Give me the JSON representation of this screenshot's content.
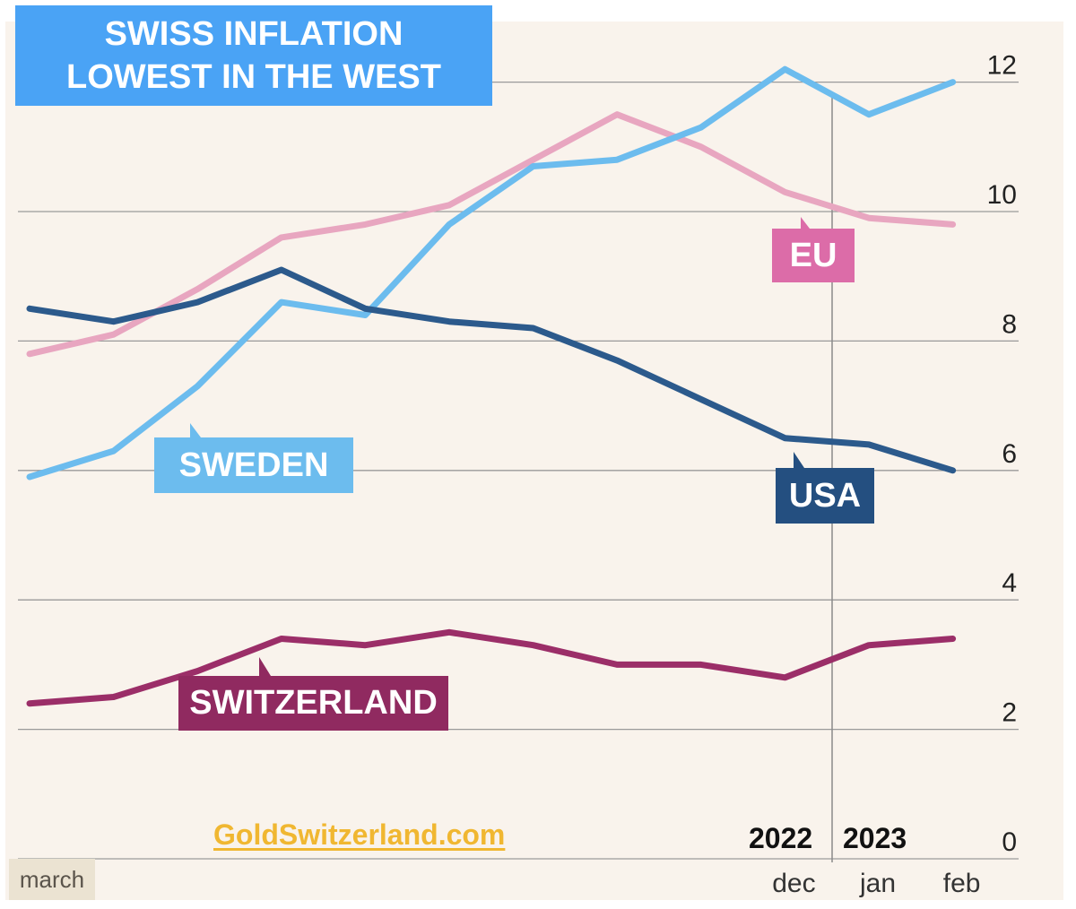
{
  "title_lines": [
    "SWISS INFLATION",
    "LOWEST IN THE WEST"
  ],
  "watermark": "GoldSwitzerland.com",
  "march_label": "march",
  "years": [
    "2022",
    "2023"
  ],
  "colors": {
    "background": "#f9f3ec",
    "title_box": "#4aa3f5",
    "gridline": "#9a9a9a",
    "eu": "#e8a6c0",
    "sweden": "#6cbcee",
    "usa": "#2c5a8c",
    "switzerland": "#9b2e68"
  },
  "chart_data": {
    "type": "line",
    "title": "SWISS INFLATION LOWEST IN THE WEST",
    "x": [
      "march",
      "",
      "",
      "",
      "",
      "",
      "",
      "",
      "",
      "dec",
      "jan",
      "feb"
    ],
    "x_tick_labels": [
      "dec",
      "jan",
      "feb"
    ],
    "y_ticks": [
      0,
      2,
      4,
      6,
      8,
      10,
      12
    ],
    "ylim": [
      0,
      12
    ],
    "y_axis_side": "right",
    "grid": "horizontal",
    "series": [
      {
        "name": "EU",
        "color": "#e8a6c0",
        "values": [
          7.8,
          8.1,
          8.8,
          9.6,
          9.8,
          10.1,
          10.8,
          11.5,
          11.0,
          10.3,
          9.9,
          9.8
        ]
      },
      {
        "name": "SWEDEN",
        "color": "#6cbcee",
        "values": [
          5.9,
          6.3,
          7.3,
          8.6,
          8.4,
          9.8,
          10.7,
          10.8,
          11.3,
          12.2,
          11.5,
          12.0
        ]
      },
      {
        "name": "USA",
        "color": "#2c5a8c",
        "values": [
          8.5,
          8.3,
          8.6,
          9.1,
          8.5,
          8.3,
          8.2,
          7.7,
          7.1,
          6.5,
          6.4,
          6.0
        ]
      },
      {
        "name": "SWITZERLAND",
        "color": "#9b2e68",
        "values": [
          2.4,
          2.5,
          2.9,
          3.4,
          3.3,
          3.5,
          3.3,
          3.0,
          3.0,
          2.8,
          3.3,
          3.4
        ]
      }
    ]
  }
}
